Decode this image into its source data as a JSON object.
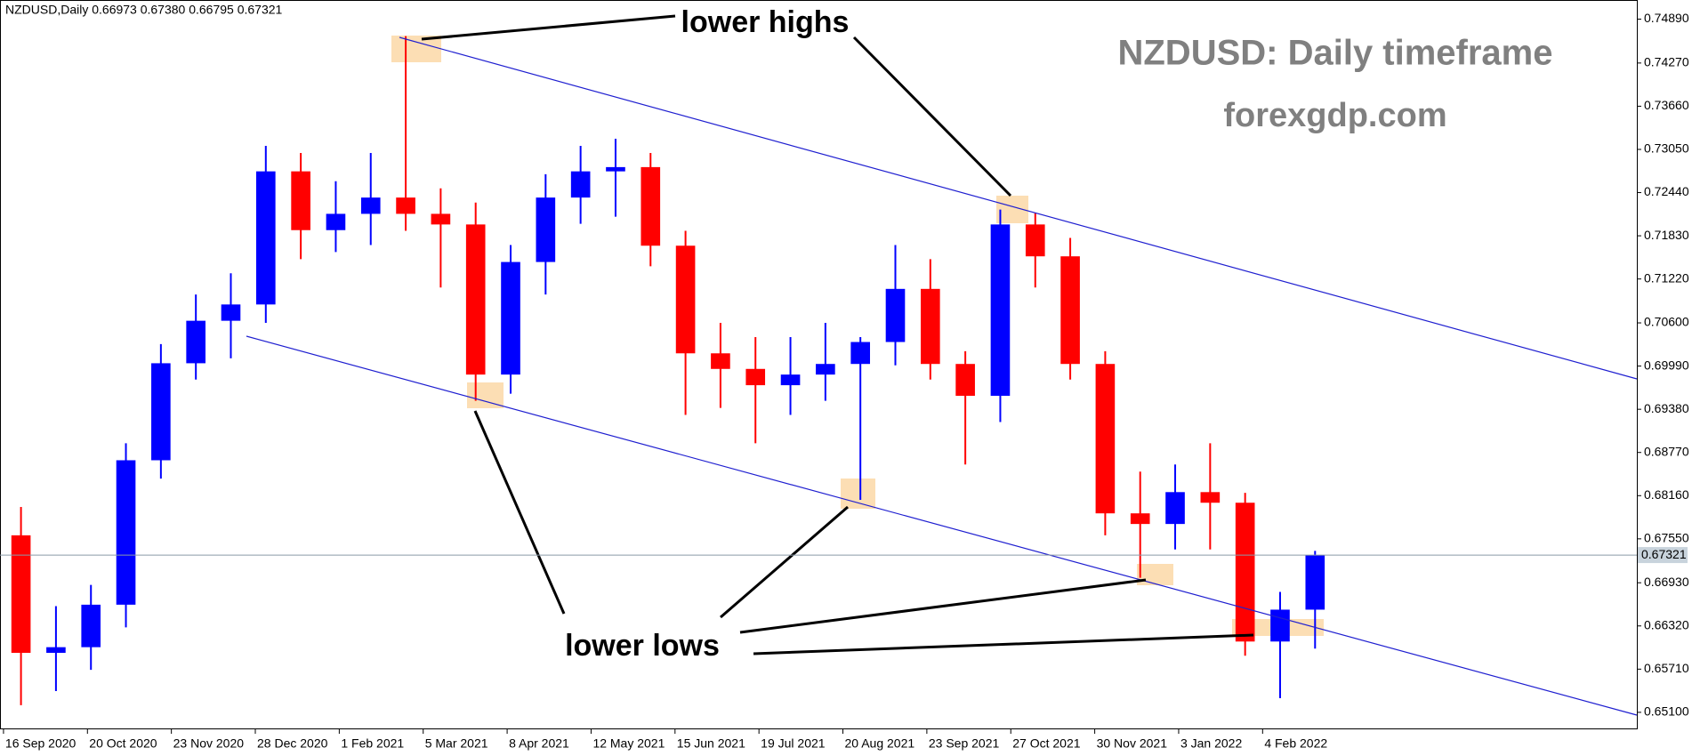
{
  "chart_data": {
    "type": "candlestick",
    "header": "NZDUSD,Daily  0.66973 0.67380 0.66795 0.67321",
    "title": "NZDUSD: Daily timeframe",
    "subtitle": "forexgdp.com",
    "annotations": [
      "lower highs",
      "lower lows"
    ],
    "up_color": "#0000ff",
    "down_color": "#ff0000",
    "x": [
      5,
      15,
      25,
      35,
      45,
      55,
      65,
      75,
      85,
      95,
      105,
      115,
      125,
      135,
      145,
      155,
      165,
      175,
      185,
      195,
      205,
      215,
      225,
      235,
      245,
      255,
      265,
      275,
      285,
      295,
      305,
      315,
      325,
      335,
      345,
      355,
      365,
      375
    ],
    "open": [
      0.676,
      0.6594,
      0.6602,
      0.6662,
      0.6866,
      0.7003,
      0.7063,
      0.7086,
      0.7274,
      0.7191,
      0.7214,
      0.7237,
      0.7214,
      0.7199,
      0.6987,
      0.7146,
      0.7237,
      0.7274,
      0.728,
      0.7169,
      0.7017,
      0.6995,
      0.6972,
      0.6987,
      0.7002,
      0.7033,
      0.7108,
      0.7002,
      0.6957,
      0.7199,
      0.7154,
      0.7002,
      0.6791,
      0.6776,
      0.6821,
      0.6806,
      0.661,
      0.6655
    ],
    "high": [
      0.68,
      0.666,
      0.669,
      0.689,
      0.703,
      0.71,
      0.713,
      0.731,
      0.73,
      0.726,
      0.73,
      0.7465,
      0.725,
      0.723,
      0.717,
      0.727,
      0.731,
      0.732,
      0.73,
      0.719,
      0.706,
      0.704,
      0.704,
      0.706,
      0.704,
      0.717,
      0.715,
      0.702,
      0.722,
      0.7215,
      0.718,
      0.702,
      0.685,
      0.686,
      0.689,
      0.682,
      0.668,
      0.6738
    ],
    "low": [
      0.652,
      0.654,
      0.657,
      0.663,
      0.684,
      0.698,
      0.701,
      0.706,
      0.715,
      0.716,
      0.717,
      0.719,
      0.711,
      0.695,
      0.696,
      0.71,
      0.72,
      0.721,
      0.714,
      0.693,
      0.694,
      0.689,
      0.693,
      0.695,
      0.681,
      0.7,
      0.698,
      0.686,
      0.692,
      0.711,
      0.698,
      0.676,
      0.67,
      0.674,
      0.674,
      0.659,
      0.653,
      0.66
    ],
    "close": [
      0.6594,
      0.6602,
      0.6662,
      0.6866,
      0.7003,
      0.7063,
      0.7086,
      0.7274,
      0.7191,
      0.7214,
      0.7237,
      0.7214,
      0.7199,
      0.6987,
      0.7146,
      0.7237,
      0.7274,
      0.728,
      0.7169,
      0.7017,
      0.6995,
      0.6972,
      0.6987,
      0.7002,
      0.7033,
      0.7108,
      0.7002,
      0.6957,
      0.7199,
      0.7154,
      0.7002,
      0.6791,
      0.6776,
      0.6821,
      0.6806,
      0.661,
      0.6655,
      0.6732
    ],
    "last_price": 0.67321,
    "xlim": [
      -1,
      467
    ],
    "xticks": [
      {
        "value": 0,
        "label": "16 Sep 2020"
      },
      {
        "value": 24,
        "label": "20 Oct 2020"
      },
      {
        "value": 48,
        "label": "23 Nov 2020"
      },
      {
        "value": 72,
        "label": "28 Dec 2020"
      },
      {
        "value": 96,
        "label": "1 Feb 2021"
      },
      {
        "value": 120,
        "label": "5 Mar 2021"
      },
      {
        "value": 144,
        "label": "8 Apr 2021"
      },
      {
        "value": 168,
        "label": "12 May 2021"
      },
      {
        "value": 192,
        "label": "15 Jun 2021"
      },
      {
        "value": 216,
        "label": "19 Jul 2021"
      },
      {
        "value": 240,
        "label": "20 Aug 2021"
      },
      {
        "value": 264,
        "label": "23 Sep 2021"
      },
      {
        "value": 288,
        "label": "27 Oct 2021"
      },
      {
        "value": 312,
        "label": "30 Nov 2021"
      },
      {
        "value": 336,
        "label": "3 Jan 2022"
      },
      {
        "value": 360,
        "label": "4 Feb 2022"
      }
    ],
    "ylim": [
      0.6486,
      0.7516
    ],
    "yticks": [
      {
        "value": 0.7489,
        "label": "0.74890"
      },
      {
        "value": 0.7427,
        "label": "0.74270"
      },
      {
        "value": 0.7366,
        "label": "0.73660"
      },
      {
        "value": 0.7305,
        "label": "0.73050"
      },
      {
        "value": 0.7244,
        "label": "0.72440"
      },
      {
        "value": 0.7183,
        "label": "0.71830"
      },
      {
        "value": 0.7122,
        "label": "0.71220"
      },
      {
        "value": 0.706,
        "label": "0.70600"
      },
      {
        "value": 0.6999,
        "label": "0.69990"
      },
      {
        "value": 0.6938,
        "label": "0.69380"
      },
      {
        "value": 0.6877,
        "label": "0.68770"
      },
      {
        "value": 0.6816,
        "label": "0.68160"
      },
      {
        "value": 0.6755,
        "label": "0.67550"
      },
      {
        "value": 0.6693,
        "label": "0.66930"
      },
      {
        "value": 0.6632,
        "label": "0.66320"
      },
      {
        "value": 0.6571,
        "label": "0.65710"
      },
      {
        "value": 0.651,
        "label": "0.65100"
      }
    ]
  }
}
